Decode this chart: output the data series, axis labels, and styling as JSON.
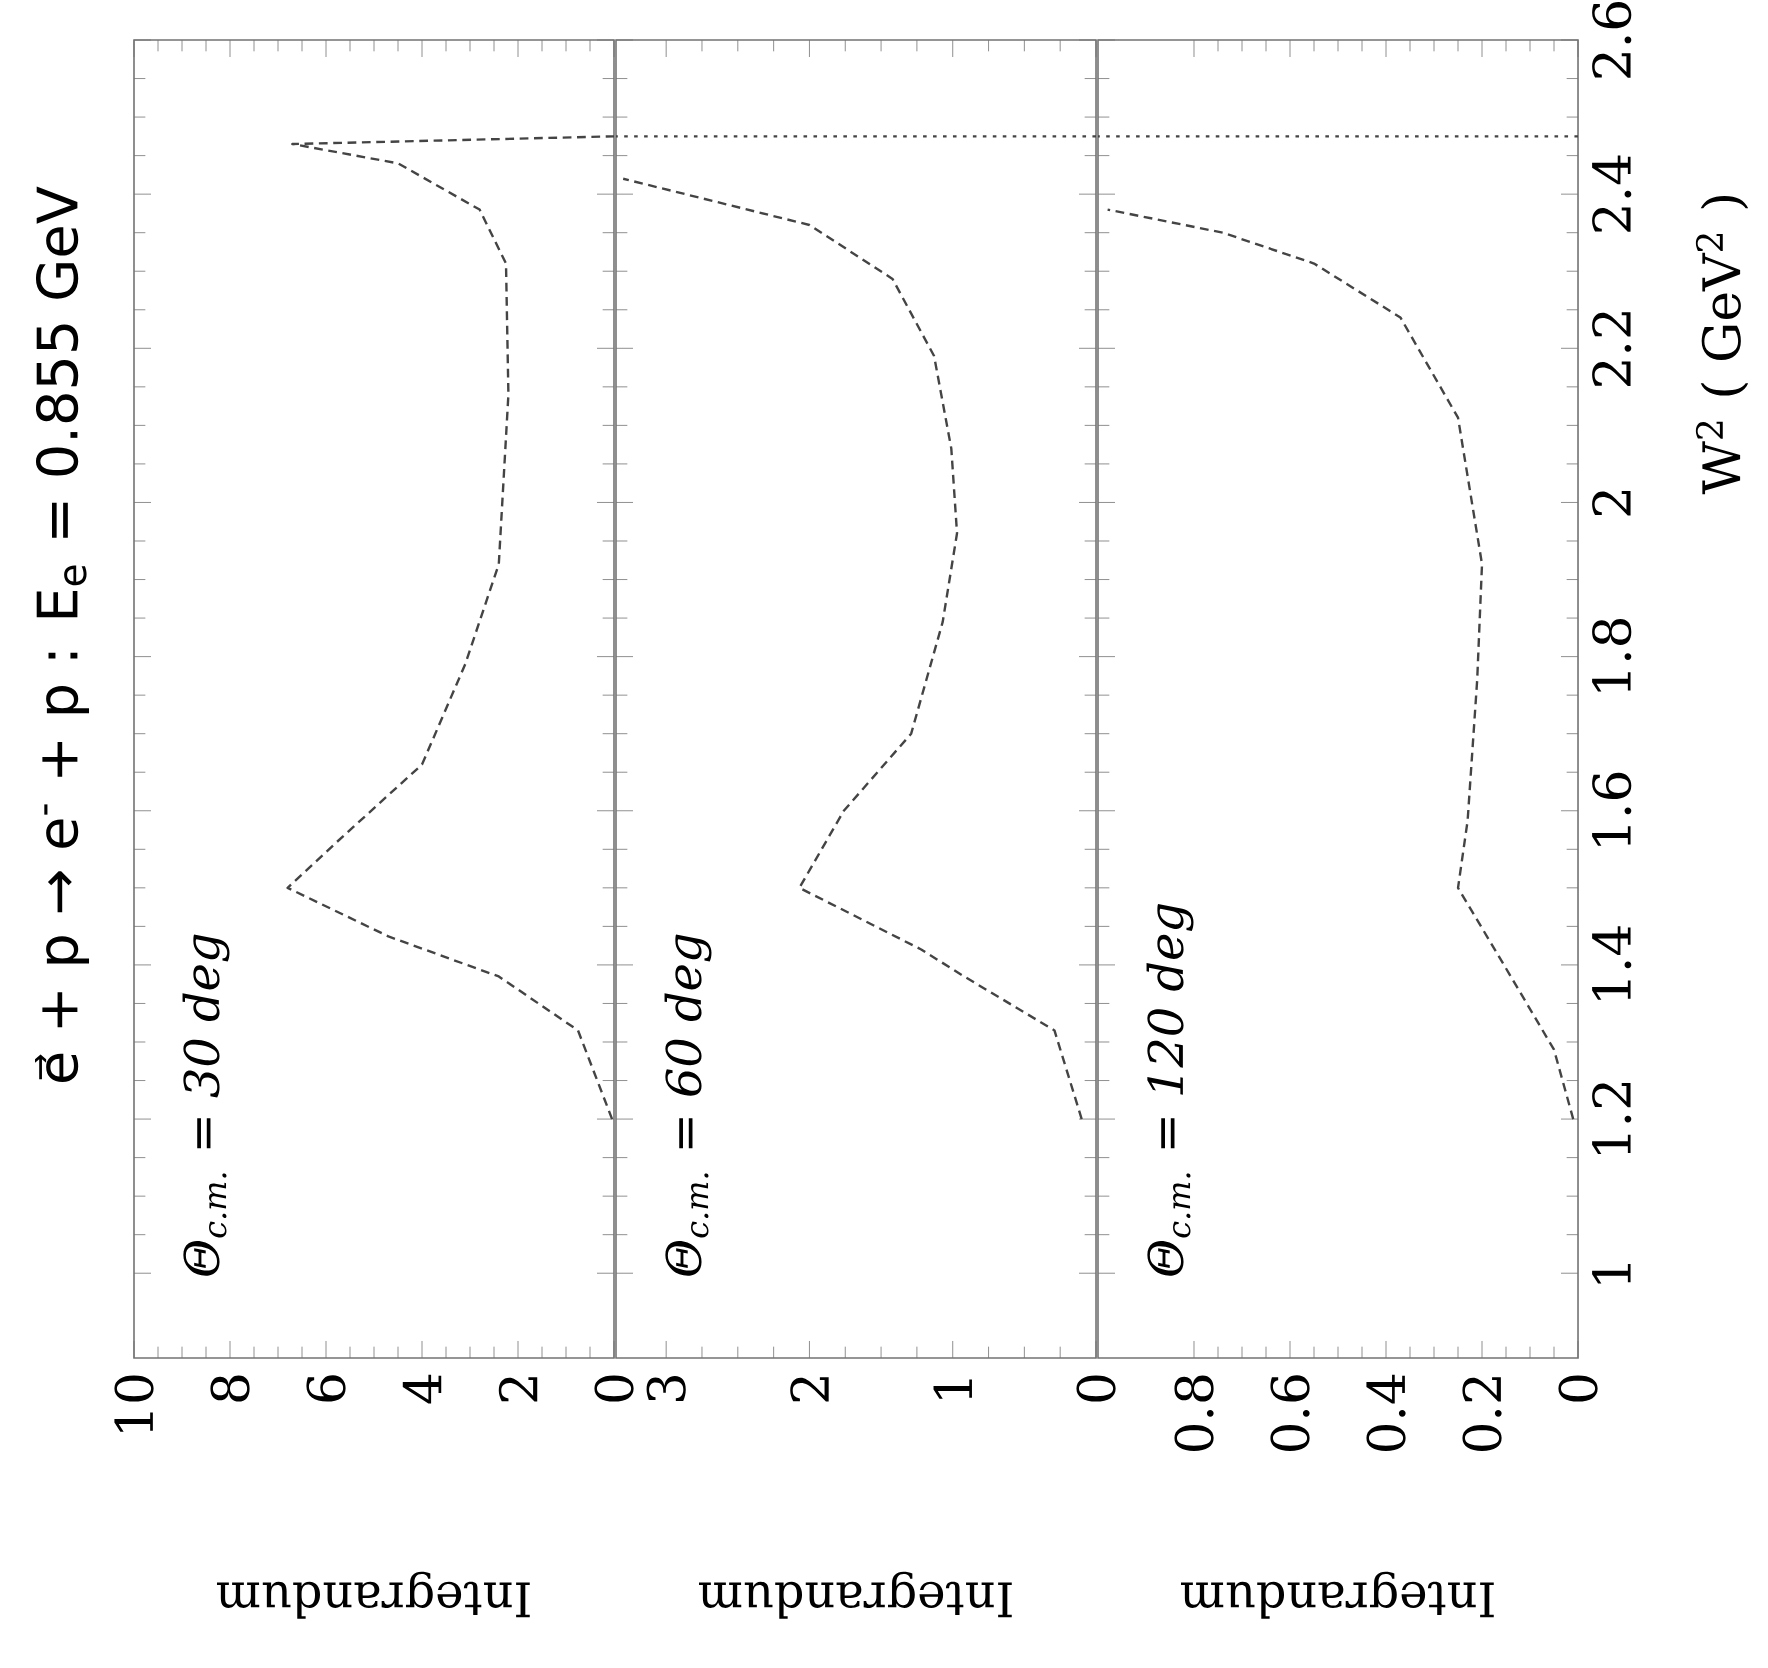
{
  "chart_data": [
    {
      "type": "line",
      "title": "e⃗ + p → e$^{-}$ + p : E$_{e}$ = 0.855 GeV",
      "xlabel": "Integrandum",
      "annotations": [
        "Θ$_{c.m.}$ = 30 deg"
      ],
      "xlim": [
        10,
        0
      ],
      "xticks": [
        10,
        8,
        6,
        4,
        2,
        0
      ],
      "ylim": [
        0.89,
        2.6
      ],
      "yticks": [
        1,
        1.2,
        1.4,
        1.6,
        1.8,
        2,
        2.2,
        2.4,
        2.6
      ],
      "tick_labels": "x",
      "line_style": "dashed",
      "series": [
        {
          "color": "#444444",
          "x": [
            0.04,
            0.75,
            2.4,
            4.7,
            6.8,
            5.8,
            4.0,
            3.1,
            2.4,
            2.2,
            2.25,
            2.8,
            4.5,
            6.7,
            0
          ],
          "values": [
            1.2,
            1.315,
            1.385,
            1.437,
            1.5,
            1.558,
            1.66,
            1.79,
            1.92,
            2.14,
            2.31,
            2.38,
            2.44,
            2.465,
            2.475
          ]
        }
      ]
    },
    {
      "type": "line",
      "xlabel": "Integrandum",
      "annotations": [
        "Θ$_{c.m.}$ = 60 deg"
      ],
      "xlim": [
        3.35,
        0
      ],
      "xticks": [
        3,
        2,
        1,
        0
      ],
      "ylim": [
        0.89,
        2.6
      ],
      "yticks": [
        1,
        1.2,
        1.4,
        1.6,
        1.8,
        2,
        2.2,
        2.4,
        2.6
      ],
      "tick_labels": "x",
      "line_style": "dashed",
      "ref_lines": [
        {
          "axis": "y",
          "value": 2.475,
          "color": "#444444",
          "line_style": "dotted"
        }
      ],
      "series": [
        {
          "color": "#444444",
          "x": [
            0.1,
            0.29,
            0.92,
            1.22,
            2.07,
            1.76,
            1.29,
            1.07,
            0.97,
            1.01,
            1.13,
            1.42,
            2.0,
            3.3
          ],
          "values": [
            1.2,
            1.315,
            1.385,
            1.42,
            1.5,
            1.6,
            1.7,
            1.845,
            1.96,
            2.07,
            2.19,
            2.29,
            2.36,
            2.42
          ]
        }
      ]
    },
    {
      "type": "line",
      "xlabel": "Integrandum",
      "ylabel": "W$^{2}$ ( GeV$^{2}$ )",
      "annotations": [
        "Θ$_{c.m.}$ = 120 deg"
      ],
      "xlim": [
        1,
        0
      ],
      "xticks": [
        0.8,
        0.6,
        0.4,
        0.2,
        0
      ],
      "ylim": [
        0.89,
        2.6
      ],
      "yticks": [
        1,
        1.2,
        1.4,
        1.6,
        1.8,
        2,
        2.2,
        2.4,
        2.6
      ],
      "line_style": "dashed",
      "ref_lines": [
        {
          "axis": "y",
          "value": 2.475,
          "color": "#444444",
          "line_style": "dotted"
        }
      ],
      "series": [
        {
          "color": "#444444",
          "x": [
            0.01,
            0.05,
            0.14,
            0.25,
            0.23,
            0.21,
            0.2,
            0.25,
            0.37,
            0.55,
            0.74,
            0.98
          ],
          "values": [
            1.2,
            1.29,
            1.385,
            1.5,
            1.587,
            1.77,
            1.92,
            2.11,
            2.24,
            2.31,
            2.35,
            2.38
          ]
        }
      ]
    }
  ]
}
